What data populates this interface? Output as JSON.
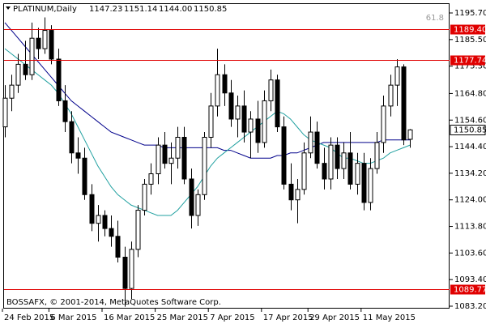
{
  "chart_data": {
    "type": "candlestick",
    "title": "PLATINUM,Daily",
    "ohlc_labels": [
      "1147.23",
      "1151.14",
      "1144.00",
      "1150.85"
    ],
    "footer": "BOSSAFX, © 2001-2014, MetaQuotes Software Corp.",
    "annotation": "61.8",
    "open": [
      1152,
      1163,
      1168,
      1176,
      1172,
      1186,
      1182,
      1189,
      1178,
      1162,
      1154,
      1142,
      1140,
      1126,
      1115,
      1118,
      1113,
      1110,
      1102,
      1090,
      1105,
      1120,
      1130,
      1134,
      1145,
      1138,
      1140,
      1148,
      1132,
      1118,
      1126,
      1148,
      1160,
      1172,
      1165,
      1155,
      1160,
      1150,
      1155,
      1146,
      1162,
      1170,
      1152,
      1130,
      1124,
      1128,
      1142,
      1150,
      1138,
      1132,
      1145,
      1136,
      1142,
      1130,
      1138,
      1123,
      1136,
      1146,
      1160,
      1168,
      1175,
      1147.23
    ],
    "high": [
      1168,
      1172,
      1180,
      1185,
      1192,
      1190,
      1194,
      1191,
      1182,
      1168,
      1158,
      1148,
      1144,
      1130,
      1122,
      1120,
      1118,
      1116,
      1106,
      1108,
      1122,
      1132,
      1138,
      1148,
      1150,
      1146,
      1152,
      1152,
      1136,
      1128,
      1150,
      1165,
      1182,
      1176,
      1170,
      1164,
      1166,
      1158,
      1162,
      1166,
      1174,
      1172,
      1156,
      1138,
      1132,
      1146,
      1156,
      1154,
      1144,
      1148,
      1148,
      1146,
      1150,
      1142,
      1142,
      1140,
      1150,
      1164,
      1172,
      1178,
      1176,
      1151.14
    ],
    "low": [
      1148,
      1158,
      1165,
      1170,
      1170,
      1178,
      1180,
      1176,
      1160,
      1150,
      1138,
      1134,
      1124,
      1112,
      1108,
      1110,
      1106,
      1100,
      1083,
      1086,
      1102,
      1118,
      1126,
      1130,
      1136,
      1130,
      1136,
      1130,
      1113,
      1114,
      1124,
      1144,
      1156,
      1160,
      1152,
      1148,
      1146,
      1140,
      1142,
      1144,
      1158,
      1150,
      1128,
      1120,
      1115,
      1126,
      1140,
      1136,
      1128,
      1128,
      1132,
      1132,
      1128,
      1126,
      1120,
      1120,
      1134,
      1142,
      1156,
      1160,
      1145,
      1144.0
    ],
    "close": [
      1163,
      1168,
      1176,
      1172,
      1186,
      1182,
      1189,
      1178,
      1162,
      1154,
      1142,
      1140,
      1126,
      1115,
      1118,
      1113,
      1110,
      1102,
      1090,
      1105,
      1120,
      1130,
      1134,
      1145,
      1138,
      1140,
      1148,
      1132,
      1118,
      1126,
      1148,
      1160,
      1172,
      1165,
      1155,
      1160,
      1150,
      1155,
      1146,
      1162,
      1170,
      1152,
      1130,
      1124,
      1128,
      1142,
      1150,
      1138,
      1132,
      1145,
      1136,
      1142,
      1130,
      1138,
      1123,
      1136,
      1146,
      1160,
      1168,
      1175,
      1147,
      1150.85
    ],
    "series": [
      {
        "color": "#00008b",
        "values": [
          1192,
          1189,
          1186,
          1183,
          1180,
          1177,
          1174,
          1171,
          1168,
          1165,
          1162,
          1160,
          1158,
          1156,
          1154,
          1152,
          1150,
          1149,
          1148,
          1147,
          1146,
          1145,
          1145,
          1145,
          1144,
          1144,
          1144,
          1144,
          1144,
          1144,
          1144,
          1144,
          1144,
          1143,
          1143,
          1142,
          1141,
          1140,
          1140,
          1140,
          1140,
          1141,
          1141,
          1142,
          1142,
          1143,
          1144,
          1145,
          1146,
          1146,
          1146,
          1146,
          1146,
          1146,
          1146,
          1146,
          1146,
          1147,
          1147,
          1147,
          1147,
          1147
        ]
      },
      {
        "color": "#20a0a0",
        "values": [
          1182,
          1180,
          1178,
          1176,
          1174,
          1172,
          1170,
          1168,
          1165,
          1161,
          1157,
          1152,
          1147,
          1142,
          1137,
          1133,
          1129,
          1126,
          1124,
          1122,
          1121,
          1120,
          1119,
          1118,
          1118,
          1118,
          1120,
          1123,
          1126,
          1129,
          1133,
          1137,
          1140,
          1142,
          1144,
          1146,
          1148,
          1150,
          1152,
          1154,
          1156,
          1158,
          1157,
          1155,
          1152,
          1149,
          1147,
          1146,
          1145,
          1144,
          1142,
          1140,
          1140,
          1139,
          1138,
          1138,
          1139,
          1140,
          1142,
          1143,
          1144,
          1145
        ]
      }
    ],
    "ylim": [
      1083.2,
      1195.7
    ],
    "yticks": [
      {
        "value": 1195.7,
        "label": "1195.70"
      },
      {
        "value": 1185.5,
        "label": "1185.50"
      },
      {
        "value": 1175.3,
        "label": "1175.30"
      },
      {
        "value": 1164.8,
        "label": "1164.80"
      },
      {
        "value": 1154.6,
        "label": "1154.60"
      },
      {
        "value": 1144.4,
        "label": "1144.40"
      },
      {
        "value": 1134.2,
        "label": "1134.20"
      },
      {
        "value": 1124,
        "label": "1124.00"
      },
      {
        "value": 1113.8,
        "label": "1113.80"
      },
      {
        "value": 1103.6,
        "label": "1103.60"
      },
      {
        "value": 1093.4,
        "label": "1093.40"
      },
      {
        "value": 1083.2,
        "label": "1083.20"
      }
    ],
    "xticks": [
      {
        "value": 0,
        "label": "24 Feb 2015"
      },
      {
        "value": 7,
        "label": "6 Mar 2015"
      },
      {
        "value": 15,
        "label": "16 Mar 2015"
      },
      {
        "value": 23,
        "label": "25 Mar 2015"
      },
      {
        "value": 31,
        "label": "7 Apr 2015"
      },
      {
        "value": 39,
        "label": "17 Apr 2015"
      },
      {
        "value": 46,
        "label": "29 Apr 2015"
      },
      {
        "value": 54,
        "label": "11 May 2015"
      }
    ],
    "hlines": [
      {
        "value": 1189.4,
        "label": "1189.40"
      },
      {
        "value": 1177.74,
        "label": "1177.74"
      },
      {
        "value": 1089.77,
        "label": "1089.77"
      }
    ],
    "hline_color": "#e00000",
    "price_label": {
      "value": 1150.85,
      "label": "1150.85"
    }
  }
}
